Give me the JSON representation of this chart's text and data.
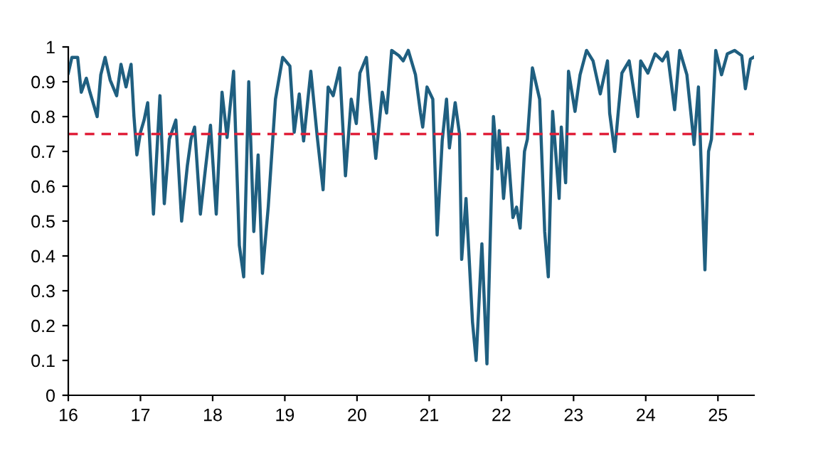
{
  "chart_data": {
    "type": "line",
    "x": [
      16.0,
      16.05,
      16.13,
      16.18,
      16.25,
      16.3,
      16.4,
      16.45,
      16.51,
      16.58,
      16.67,
      16.73,
      16.8,
      16.87,
      16.91,
      16.95,
      17.0,
      17.05,
      17.1,
      17.18,
      17.27,
      17.33,
      17.4,
      17.49,
      17.57,
      17.65,
      17.7,
      17.75,
      17.83,
      17.9,
      17.97,
      18.05,
      18.13,
      18.2,
      18.29,
      18.37,
      18.43,
      18.5,
      18.57,
      18.63,
      18.69,
      18.77,
      18.87,
      18.97,
      19.07,
      19.13,
      19.2,
      19.26,
      19.36,
      19.45,
      19.53,
      19.6,
      19.67,
      19.76,
      19.84,
      19.92,
      19.99,
      20.04,
      20.13,
      20.18,
      20.26,
      20.35,
      20.41,
      20.48,
      20.58,
      20.64,
      20.71,
      20.81,
      20.88,
      20.91,
      20.97,
      21.05,
      21.11,
      21.18,
      21.24,
      21.28,
      21.36,
      21.42,
      21.45,
      21.51,
      21.6,
      21.65,
      21.73,
      21.8,
      21.89,
      21.95,
      21.97,
      22.03,
      22.09,
      22.16,
      22.21,
      22.26,
      22.32,
      22.36,
      22.43,
      22.53,
      22.6,
      22.65,
      22.71,
      22.8,
      22.83,
      22.89,
      22.93,
      23.02,
      23.09,
      23.18,
      23.27,
      23.37,
      23.47,
      23.5,
      23.57,
      23.62,
      23.67,
      23.77,
      23.89,
      23.93,
      24.03,
      24.13,
      24.23,
      24.3,
      24.4,
      24.47,
      24.57,
      24.67,
      24.73,
      24.82,
      24.87,
      24.91,
      24.97,
      25.05,
      25.13,
      25.23,
      25.33,
      25.38,
      25.45,
      25.49
    ],
    "series": [
      {
        "color": "#1f5f80",
        "values": [
          0.925,
          0.97,
          0.97,
          0.87,
          0.91,
          0.87,
          0.8,
          0.92,
          0.97,
          0.905,
          0.86,
          0.95,
          0.885,
          0.95,
          0.8,
          0.69,
          0.755,
          0.79,
          0.84,
          0.52,
          0.86,
          0.55,
          0.735,
          0.79,
          0.5,
          0.66,
          0.735,
          0.77,
          0.52,
          0.65,
          0.775,
          0.52,
          0.87,
          0.74,
          0.93,
          0.43,
          0.34,
          0.9,
          0.47,
          0.69,
          0.35,
          0.54,
          0.85,
          0.97,
          0.945,
          0.755,
          0.865,
          0.73,
          0.93,
          0.74,
          0.59,
          0.885,
          0.86,
          0.94,
          0.63,
          0.85,
          0.78,
          0.925,
          0.97,
          0.85,
          0.68,
          0.87,
          0.81,
          0.99,
          0.975,
          0.96,
          0.99,
          0.92,
          0.81,
          0.77,
          0.885,
          0.85,
          0.46,
          0.73,
          0.85,
          0.71,
          0.84,
          0.75,
          0.39,
          0.565,
          0.21,
          0.1,
          0.435,
          0.09,
          0.8,
          0.65,
          0.76,
          0.565,
          0.71,
          0.51,
          0.54,
          0.48,
          0.7,
          0.735,
          0.94,
          0.85,
          0.47,
          0.34,
          0.815,
          0.565,
          0.77,
          0.61,
          0.93,
          0.815,
          0.92,
          0.99,
          0.96,
          0.865,
          0.96,
          0.81,
          0.7,
          0.815,
          0.925,
          0.96,
          0.8,
          0.96,
          0.925,
          0.98,
          0.96,
          0.985,
          0.82,
          0.99,
          0.92,
          0.72,
          0.885,
          0.36,
          0.7,
          0.735,
          0.99,
          0.92,
          0.98,
          0.99,
          0.975,
          0.88,
          0.965,
          0.97
        ]
      }
    ],
    "xlim": [
      16,
      25.5
    ],
    "xticks": [
      16,
      17,
      18,
      19,
      20,
      21,
      22,
      23,
      24,
      25
    ],
    "ylim": [
      0,
      1
    ],
    "yticks": [
      0,
      0.1,
      0.2,
      0.3,
      0.4,
      0.5,
      0.6,
      0.7,
      0.8,
      0.9,
      1
    ],
    "ref_lines": [
      {
        "axis": "y",
        "value": 0.75,
        "color": "#e0203a",
        "line_style": "dashed"
      }
    ],
    "grid": false,
    "legend": false,
    "marker": "none",
    "line_style": "solid"
  }
}
